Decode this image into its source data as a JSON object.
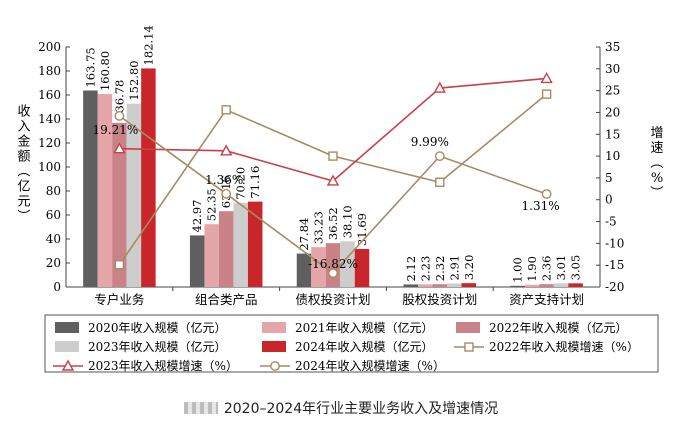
{
  "chart_data": {
    "type": "bar",
    "categories": [
      "专户业务",
      "组合类产品",
      "债权投资计划",
      "股权投资计划",
      "资产支持计划"
    ],
    "y_left": {
      "label": "收入金额（亿元）",
      "min": 0,
      "max": 200,
      "step": 20,
      "ticks": [
        "0",
        "20",
        "40",
        "60",
        "80",
        "100",
        "120",
        "140",
        "160",
        "180",
        "200"
      ]
    },
    "y_right": {
      "label": "增速（%）",
      "min": -20,
      "max": 35,
      "step": 5,
      "ticks": [
        "-20",
        "-15",
        "-10",
        "-5",
        "0",
        "5",
        "10",
        "15",
        "20",
        "25",
        "30",
        "35"
      ]
    },
    "bar_series": [
      {
        "name": "2020年收入规模（亿元）",
        "color": "#5f5f5f",
        "values": [
          163.75,
          42.97,
          27.84,
          2.12,
          1.0
        ],
        "labels": [
          "163.75",
          "42.97",
          "27.84",
          "2.12",
          "1.00"
        ]
      },
      {
        "name": "2021年收入规模（亿元）",
        "color": "#e4a6a9",
        "values": [
          160.8,
          52.35,
          33.23,
          2.23,
          1.9
        ],
        "labels": [
          "160.80",
          "52.35",
          "33.23",
          "2.23",
          "1.90"
        ]
      },
      {
        "name": "2022年收入规模（亿元）",
        "color": "#c98287",
        "values": [
          136.78,
          63.16,
          36.52,
          2.32,
          2.36
        ],
        "labels": [
          "136.78",
          "63.16",
          "36.52",
          "2.32",
          "2.36"
        ]
      },
      {
        "name": "2023年收入规模（亿元）",
        "color": "#cdcdcd",
        "values": [
          152.8,
          70.2,
          38.1,
          2.91,
          3.01
        ],
        "labels": [
          "152.80",
          "70.20",
          "38.10",
          "2.91",
          "3.01"
        ]
      },
      {
        "name": "2024年收入规模（亿元）",
        "color": "#c8262b",
        "values": [
          182.14,
          71.16,
          31.69,
          3.2,
          3.05
        ],
        "labels": [
          "182.14",
          "71.16",
          "31.69",
          "3.20",
          "3.05"
        ]
      }
    ],
    "line_series": [
      {
        "name": "2022年收入规模增速（%）",
        "color": "#a88a62",
        "marker": "square",
        "values": [
          -14.9,
          20.6,
          10.0,
          4.0,
          24.2
        ]
      },
      {
        "name": "2023年收入规模增速（%）",
        "color": "#c8404a",
        "marker": "triangle",
        "values": [
          11.7,
          11.2,
          4.3,
          25.6,
          27.8
        ]
      },
      {
        "name": "2024年收入规模增速（%）",
        "color": "#a88a62",
        "marker": "circle",
        "values": [
          19.21,
          1.36,
          -16.82,
          9.99,
          1.31
        ]
      }
    ],
    "line_labels": [
      "19.21%",
      "1.36%",
      "-16.82%",
      "9.99%",
      "1.31%"
    ],
    "legend_position": "bottom"
  },
  "caption": "2020–2024年行业主要业务收入及增速情况"
}
